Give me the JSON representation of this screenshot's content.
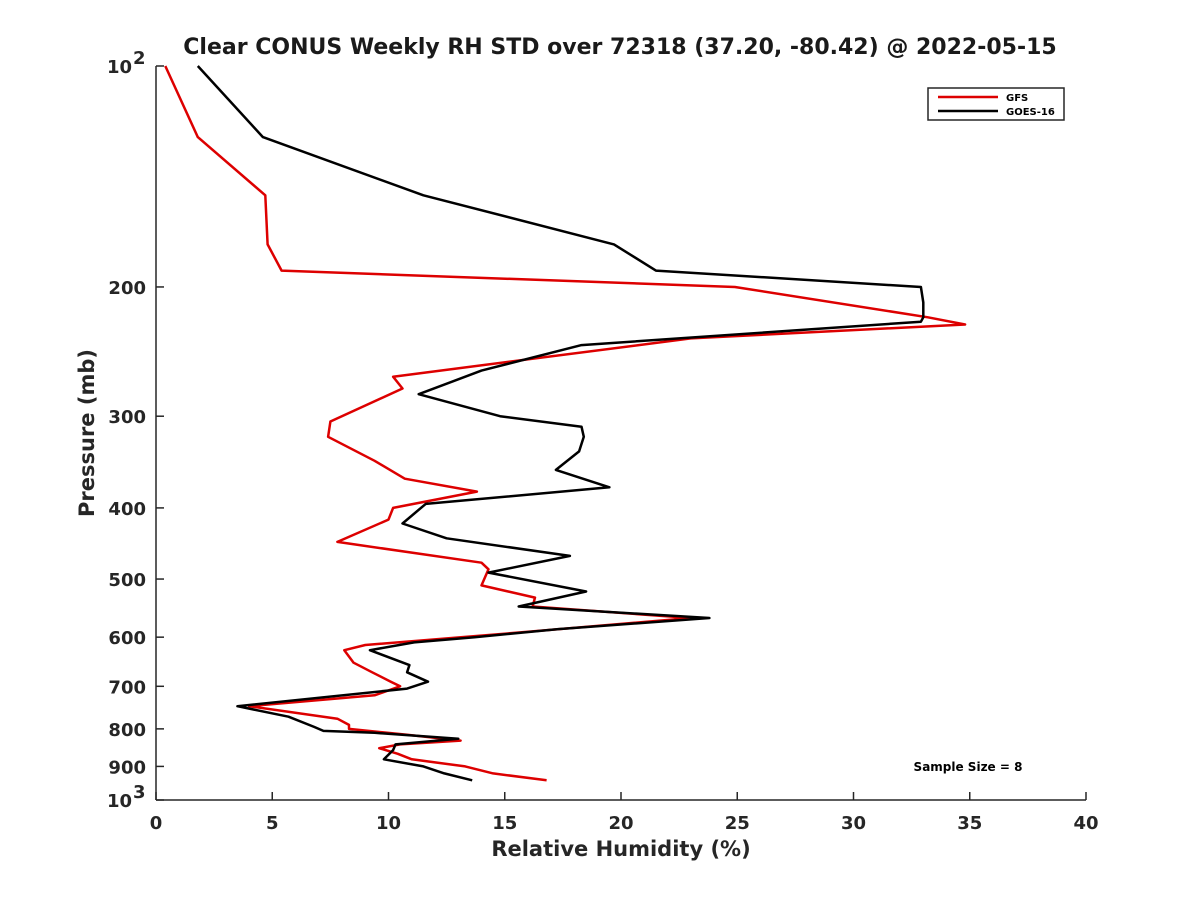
{
  "chart_data": {
    "type": "line",
    "title": "Clear CONUS Weekly RH STD over 72318 (37.20, -80.42) @ 2022-05-15",
    "xlabel": "Relative Humidity (%)",
    "ylabel": "Pressure (mb)",
    "xlim": [
      0,
      40
    ],
    "ylim": [
      100,
      1000
    ],
    "y_scale": "log",
    "y_reversed": true,
    "xticks": [
      0,
      5,
      10,
      15,
      20,
      25,
      30,
      35,
      40
    ],
    "yticks": [
      {
        "value": 100,
        "base": "10",
        "exp": "2"
      },
      {
        "value": 200,
        "label": "200"
      },
      {
        "value": 300,
        "label": "300"
      },
      {
        "value": 400,
        "label": "400"
      },
      {
        "value": 500,
        "label": "500"
      },
      {
        "value": 600,
        "label": "600"
      },
      {
        "value": 700,
        "label": "700"
      },
      {
        "value": 800,
        "label": "800"
      },
      {
        "value": 900,
        "label": "900"
      },
      {
        "value": 1000,
        "base": "10",
        "exp": "3"
      }
    ],
    "legend_position": "top-right",
    "annotation": "Sample Size = 8",
    "series": [
      {
        "name": "GFS",
        "color": "#dd0000",
        "points": [
          [
            0.4,
            100
          ],
          [
            1.8,
            125
          ],
          [
            4.7,
            150
          ],
          [
            4.8,
            175
          ],
          [
            5.4,
            190
          ],
          [
            24.9,
            200
          ],
          [
            33.2,
            220
          ],
          [
            34.8,
            225
          ],
          [
            23.0,
            235
          ],
          [
            10.2,
            265
          ],
          [
            10.6,
            275
          ],
          [
            7.5,
            305
          ],
          [
            7.4,
            320
          ],
          [
            9.4,
            345
          ],
          [
            10.7,
            365
          ],
          [
            13.8,
            380
          ],
          [
            10.2,
            400
          ],
          [
            10.0,
            415
          ],
          [
            7.8,
            445
          ],
          [
            14.0,
            475
          ],
          [
            14.3,
            485
          ],
          [
            14.0,
            510
          ],
          [
            16.3,
            530
          ],
          [
            16.2,
            545
          ],
          [
            23.0,
            565
          ],
          [
            16.0,
            590
          ],
          [
            9.0,
            615
          ],
          [
            8.1,
            625
          ],
          [
            8.5,
            650
          ],
          [
            9.3,
            670
          ],
          [
            10.1,
            690
          ],
          [
            10.5,
            700
          ],
          [
            9.4,
            720
          ],
          [
            4.0,
            745
          ],
          [
            7.8,
            775
          ],
          [
            8.3,
            790
          ],
          [
            8.3,
            800
          ],
          [
            10.8,
            815
          ],
          [
            13.1,
            830
          ],
          [
            10.5,
            840
          ],
          [
            9.6,
            850
          ],
          [
            10.4,
            865
          ],
          [
            11.0,
            880
          ],
          [
            13.3,
            900
          ],
          [
            14.5,
            920
          ],
          [
            16.8,
            940
          ]
        ]
      },
      {
        "name": "GOES-16",
        "color": "#000000",
        "points": [
          [
            1.8,
            100
          ],
          [
            4.6,
            125
          ],
          [
            11.5,
            150
          ],
          [
            19.7,
            175
          ],
          [
            21.5,
            190
          ],
          [
            32.9,
            200
          ],
          [
            33.0,
            210
          ],
          [
            33.0,
            220
          ],
          [
            32.9,
            223
          ],
          [
            18.3,
            240
          ],
          [
            14.0,
            260
          ],
          [
            11.3,
            280
          ],
          [
            14.8,
            300
          ],
          [
            18.3,
            310
          ],
          [
            18.4,
            320
          ],
          [
            18.2,
            335
          ],
          [
            17.2,
            355
          ],
          [
            19.5,
            375
          ],
          [
            11.6,
            395
          ],
          [
            10.6,
            420
          ],
          [
            12.5,
            440
          ],
          [
            17.8,
            465
          ],
          [
            14.3,
            490
          ],
          [
            18.5,
            520
          ],
          [
            15.6,
            545
          ],
          [
            23.8,
            565
          ],
          [
            17.3,
            585
          ],
          [
            13.7,
            600
          ],
          [
            11.1,
            610
          ],
          [
            9.2,
            625
          ],
          [
            10.9,
            655
          ],
          [
            10.8,
            670
          ],
          [
            11.7,
            690
          ],
          [
            10.8,
            705
          ],
          [
            3.5,
            745
          ],
          [
            5.7,
            770
          ],
          [
            6.8,
            795
          ],
          [
            7.2,
            805
          ],
          [
            9.4,
            810
          ],
          [
            13.0,
            825
          ],
          [
            10.3,
            840
          ],
          [
            10.2,
            855
          ],
          [
            9.8,
            880
          ],
          [
            11.5,
            900
          ],
          [
            12.4,
            920
          ],
          [
            13.6,
            940
          ]
        ]
      }
    ]
  }
}
